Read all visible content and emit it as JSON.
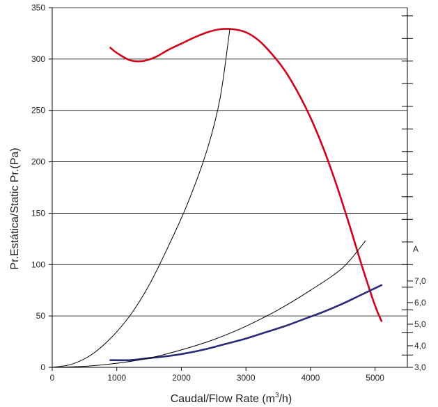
{
  "chart_data": {
    "type": "line",
    "xlabel": "Caudal/Flow Rate (m",
    "xlabel_sup": "3",
    "xlabel_tail": "/h)",
    "ylabel": "Pr.Estática/Static Pr.(Pa)",
    "xlim": [
      0,
      5500
    ],
    "ylim": [
      0,
      350
    ],
    "x_ticks": [
      0,
      1000,
      2000,
      3000,
      4000,
      5000
    ],
    "y_ticks": [
      0,
      50,
      100,
      150,
      200,
      250,
      300,
      350
    ],
    "right_axis": {
      "title": "A",
      "ticks": [
        {
          "label": "3,0",
          "at_pa": 0
        },
        {
          "label": "4,0",
          "at_pa": 21
        },
        {
          "label": "5,0",
          "at_pa": 42
        },
        {
          "label": "6,0",
          "at_pa": 63
        },
        {
          "label": "7,0",
          "at_pa": 84
        }
      ]
    },
    "grid": true,
    "series": [
      {
        "color": "#d0021b",
        "role": "static-pressure-curve",
        "points": [
          [
            900,
            311
          ],
          [
            1000,
            306
          ],
          [
            1200,
            299
          ],
          [
            1400,
            298
          ],
          [
            1600,
            302
          ],
          [
            1800,
            309
          ],
          [
            2000,
            315
          ],
          [
            2200,
            321
          ],
          [
            2400,
            326
          ],
          [
            2600,
            329
          ],
          [
            2800,
            329
          ],
          [
            3000,
            326
          ],
          [
            3200,
            318
          ],
          [
            3400,
            305
          ],
          [
            3600,
            289
          ],
          [
            3800,
            268
          ],
          [
            4000,
            243
          ],
          [
            4200,
            213
          ],
          [
            4400,
            178
          ],
          [
            4600,
            139
          ],
          [
            4800,
            98
          ],
          [
            5000,
            60
          ],
          [
            5100,
            45
          ]
        ]
      },
      {
        "color": "#2a2a7a",
        "role": "current-curve",
        "points": [
          [
            900,
            7
          ],
          [
            1200,
            7
          ],
          [
            1500,
            9
          ],
          [
            1800,
            11
          ],
          [
            2100,
            14
          ],
          [
            2400,
            18
          ],
          [
            2700,
            23
          ],
          [
            3000,
            28
          ],
          [
            3300,
            34
          ],
          [
            3600,
            40
          ],
          [
            3900,
            47
          ],
          [
            4200,
            54
          ],
          [
            4500,
            62
          ],
          [
            4800,
            71
          ],
          [
            5100,
            80
          ]
        ]
      },
      {
        "color": "#000000",
        "role": "system-curve-steep",
        "points": [
          [
            0,
            0
          ],
          [
            300,
            3
          ],
          [
            600,
            12
          ],
          [
            900,
            28
          ],
          [
            1200,
            50
          ],
          [
            1500,
            80
          ],
          [
            1800,
            118
          ],
          [
            2100,
            160
          ],
          [
            2400,
            212
          ],
          [
            2600,
            262
          ],
          [
            2750,
            329
          ]
        ]
      },
      {
        "color": "#000000",
        "role": "system-curve-shallow",
        "points": [
          [
            0,
            0
          ],
          [
            500,
            1
          ],
          [
            1000,
            4
          ],
          [
            1500,
            9
          ],
          [
            2000,
            17
          ],
          [
            2500,
            27
          ],
          [
            3000,
            40
          ],
          [
            3500,
            56
          ],
          [
            4000,
            75
          ],
          [
            4500,
            97
          ],
          [
            4850,
            123
          ]
        ]
      }
    ]
  }
}
